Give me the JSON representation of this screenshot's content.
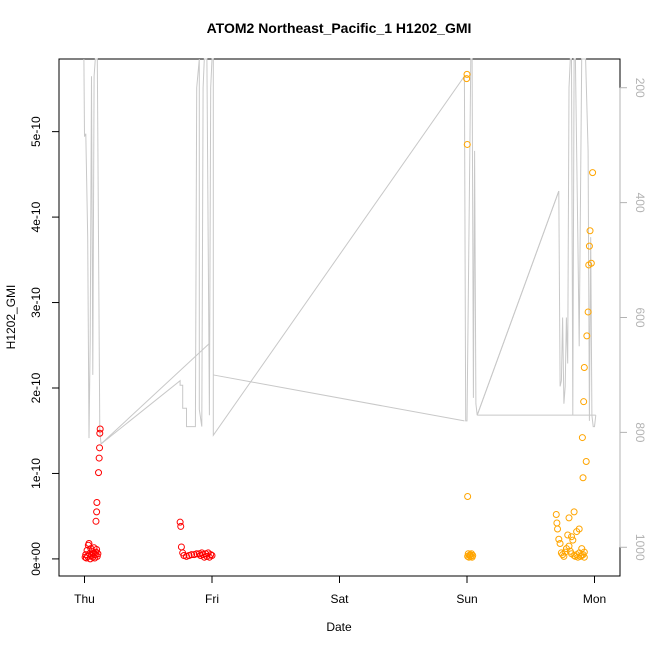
{
  "chart_data": {
    "type": "scatter",
    "title": "ATOM2 Northeast_Pacific_1 H1202_GMI",
    "xlabel": "Date",
    "ylabel": "H1202_GMI",
    "x_unit": "days after Thu 00:00",
    "xlim": [
      -0.2,
      4.2
    ],
    "ylim": [
      -2e-11,
      5.85e-10
    ],
    "x_ticks": [
      {
        "value": 0,
        "label": "Thu"
      },
      {
        "value": 1,
        "label": "Fri"
      },
      {
        "value": 2,
        "label": "Sat"
      },
      {
        "value": 3,
        "label": "Sun"
      },
      {
        "value": 4,
        "label": "Mon"
      }
    ],
    "y_ticks": [
      {
        "value": 0,
        "label": "0e+00"
      },
      {
        "value": 1e-10,
        "label": "1e-10"
      },
      {
        "value": 2e-10,
        "label": "2e-10"
      },
      {
        "value": 3e-10,
        "label": "3e-10"
      },
      {
        "value": 4e-10,
        "label": "4e-10"
      },
      {
        "value": 5e-10,
        "label": "5e-10"
      }
    ],
    "y2_axis": {
      "reversed": true,
      "lim": [
        1050,
        150
      ],
      "color": "#b3b3b3",
      "ticks": [
        {
          "value": 200,
          "label": "200"
        },
        {
          "value": 400,
          "label": "400"
        },
        {
          "value": 600,
          "label": "600"
        },
        {
          "value": 800,
          "label": "800"
        },
        {
          "value": 1000,
          "label": "1000"
        }
      ]
    },
    "grid": false,
    "series": [
      {
        "color": "#ff0000",
        "marker": "open-circle",
        "points": [
          [
            0.005,
            2e-12
          ],
          [
            0.01,
            5e-12
          ],
          [
            0.015,
            1e-12
          ],
          [
            0.02,
            1e-11
          ],
          [
            0.025,
            3e-12
          ],
          [
            0.03,
            1.6e-11
          ],
          [
            0.035,
            1.8e-11
          ],
          [
            0.04,
            6e-12
          ],
          [
            0.045,
            0.0
          ],
          [
            0.05,
            1.2e-11
          ],
          [
            0.055,
            4e-12
          ],
          [
            0.06,
            9e-12
          ],
          [
            0.065,
            2e-12
          ],
          [
            0.07,
            7e-12
          ],
          [
            0.075,
            1.3e-11
          ],
          [
            0.08,
            1e-12
          ],
          [
            0.085,
            5e-12
          ],
          [
            0.09,
            8e-12
          ],
          [
            0.095,
            1.1e-11
          ],
          [
            0.1,
            3e-12
          ],
          [
            0.105,
            6e-12
          ],
          [
            0.09,
            4.4e-11
          ],
          [
            0.095,
            5.5e-11
          ],
          [
            0.097,
            6.6e-11
          ],
          [
            0.11,
            1.01e-10
          ],
          [
            0.115,
            1.18e-10
          ],
          [
            0.118,
            1.3e-10
          ],
          [
            0.12,
            1.47e-10
          ],
          [
            0.123,
            1.52e-10
          ],
          [
            0.75,
            4.3e-11
          ],
          [
            0.755,
            3.8e-11
          ],
          [
            0.76,
            1.4e-11
          ],
          [
            0.77,
            7e-12
          ],
          [
            0.78,
            4e-12
          ],
          [
            0.8,
            3e-12
          ],
          [
            0.82,
            4e-12
          ],
          [
            0.84,
            5e-12
          ],
          [
            0.86,
            5e-12
          ],
          [
            0.88,
            6e-12
          ],
          [
            0.9,
            6e-12
          ],
          [
            0.91,
            4e-12
          ],
          [
            0.92,
            7e-12
          ],
          [
            0.93,
            5e-12
          ],
          [
            0.94,
            2e-12
          ],
          [
            0.95,
            6e-12
          ],
          [
            0.96,
            3e-12
          ],
          [
            0.97,
            7e-12
          ],
          [
            0.98,
            2e-12
          ],
          [
            0.99,
            5e-12
          ],
          [
            1.0,
            4e-12
          ]
        ]
      },
      {
        "color": "#ffa500",
        "marker": "open-circle",
        "points": [
          [
            2.997,
            5.62e-10
          ],
          [
            3.0,
            5.67e-10
          ],
          [
            3.002,
            4.85e-10
          ],
          [
            3.005,
            7.3e-11
          ],
          [
            3.005,
            3e-12
          ],
          [
            3.01,
            6e-12
          ],
          [
            3.015,
            2e-12
          ],
          [
            3.02,
            4e-12
          ],
          [
            3.025,
            5e-12
          ],
          [
            3.03,
            3e-12
          ],
          [
            3.035,
            6e-12
          ],
          [
            3.04,
            2e-12
          ],
          [
            3.045,
            4e-12
          ],
          [
            3.7,
            5.2e-11
          ],
          [
            3.705,
            4.2e-11
          ],
          [
            3.71,
            3.5e-11
          ],
          [
            3.72,
            2.3e-11
          ],
          [
            3.73,
            1.8e-11
          ],
          [
            3.74,
            7e-12
          ],
          [
            3.75,
            5e-12
          ],
          [
            3.76,
            3e-12
          ],
          [
            3.77,
            8e-12
          ],
          [
            3.78,
            1.2e-11
          ],
          [
            3.79,
            2.8e-11
          ],
          [
            3.8,
            1.5e-11
          ],
          [
            3.81,
            9e-12
          ],
          [
            3.82,
            6e-12
          ],
          [
            3.83,
            2.2e-11
          ],
          [
            3.84,
            4e-12
          ],
          [
            3.85,
            3e-12
          ],
          [
            3.86,
            5e-12
          ],
          [
            3.87,
            2e-12
          ],
          [
            3.88,
            7e-12
          ],
          [
            3.89,
            3e-12
          ],
          [
            3.9,
            4e-12
          ],
          [
            3.91,
            5e-12
          ],
          [
            3.92,
            2e-12
          ],
          [
            3.8,
            4.8e-11
          ],
          [
            3.82,
            2.6e-11
          ],
          [
            3.84,
            5.5e-11
          ],
          [
            3.86,
            3.2e-11
          ],
          [
            3.88,
            3.5e-11
          ],
          [
            3.9,
            1.2e-11
          ],
          [
            3.92,
            8e-12
          ],
          [
            3.905,
            1.42e-10
          ],
          [
            3.91,
            9.5e-11
          ],
          [
            3.915,
            1.84e-10
          ],
          [
            3.92,
            2.24e-10
          ],
          [
            3.935,
            1.14e-10
          ],
          [
            3.94,
            2.61e-10
          ],
          [
            3.95,
            2.89e-10
          ],
          [
            3.955,
            3.44e-10
          ],
          [
            3.96,
            3.66e-10
          ],
          [
            3.965,
            3.84e-10
          ],
          [
            3.975,
            3.46e-10
          ],
          [
            3.985,
            4.52e-10
          ]
        ]
      }
    ],
    "secondary_line": {
      "axis": "y2",
      "color": "#c8c8c8",
      "points": [
        [
          -0.005,
          150
        ],
        [
          0.0,
          285
        ],
        [
          0.01,
          280
        ],
        [
          0.025,
          460
        ],
        [
          0.035,
          810
        ],
        [
          0.045,
          640
        ],
        [
          0.055,
          180
        ],
        [
          0.065,
          700
        ],
        [
          0.075,
          180
        ],
        [
          0.085,
          150
        ],
        [
          0.1,
          150
        ],
        [
          0.12,
          800
        ],
        [
          0.13,
          820
        ],
        [
          0.75,
          710
        ],
        [
          0.75,
          718
        ],
        [
          0.77,
          718
        ],
        [
          0.77,
          758
        ],
        [
          0.8,
          758
        ],
        [
          0.8,
          790
        ],
        [
          0.87,
          790
        ],
        [
          0.88,
          200
        ],
        [
          0.9,
          150
        ],
        [
          0.9,
          760
        ],
        [
          0.92,
          790
        ],
        [
          0.93,
          200
        ],
        [
          0.94,
          150
        ],
        [
          0.96,
          150
        ],
        [
          0.98,
          770
        ],
        [
          0.99,
          200
        ],
        [
          1.0,
          150
        ],
        [
          1.01,
          150
        ],
        [
          1.01,
          805
        ],
        [
          2.98,
          180
        ],
        [
          2.99,
          780
        ],
        [
          3.0,
          780
        ],
        [
          3.03,
          150
        ],
        [
          3.04,
          150
        ],
        [
          3.05,
          740
        ],
        [
          3.06,
          310
        ],
        [
          3.07,
          750
        ],
        [
          3.08,
          770
        ],
        [
          3.72,
          380
        ],
        [
          3.73,
          720
        ],
        [
          3.74,
          710
        ],
        [
          3.75,
          600
        ],
        [
          3.76,
          750
        ],
        [
          3.77,
          720
        ],
        [
          3.78,
          600
        ],
        [
          3.79,
          680
        ],
        [
          3.8,
          200
        ],
        [
          3.81,
          150
        ],
        [
          3.82,
          150
        ],
        [
          3.83,
          770
        ],
        [
          3.84,
          150
        ],
        [
          3.85,
          150
        ],
        [
          3.87,
          470
        ],
        [
          3.88,
          650
        ],
        [
          3.9,
          150
        ],
        [
          3.93,
          150
        ],
        [
          3.95,
          310
        ],
        [
          3.96,
          780
        ],
        [
          3.97,
          460
        ],
        [
          3.98,
          770
        ],
        [
          3.99,
          790
        ],
        [
          4.0,
          790
        ],
        [
          4.01,
          770
        ]
      ],
      "connectors": [
        [
          [
            0.13,
            820
          ],
          [
            0.98,
            645
          ]
        ],
        [
          [
            1.01,
            700
          ],
          [
            2.98,
            780
          ]
        ],
        [
          [
            3.08,
            770
          ],
          [
            3.72,
            380
          ]
        ],
        [
          [
            3.08,
            770
          ],
          [
            4.01,
            770
          ]
        ]
      ]
    }
  }
}
